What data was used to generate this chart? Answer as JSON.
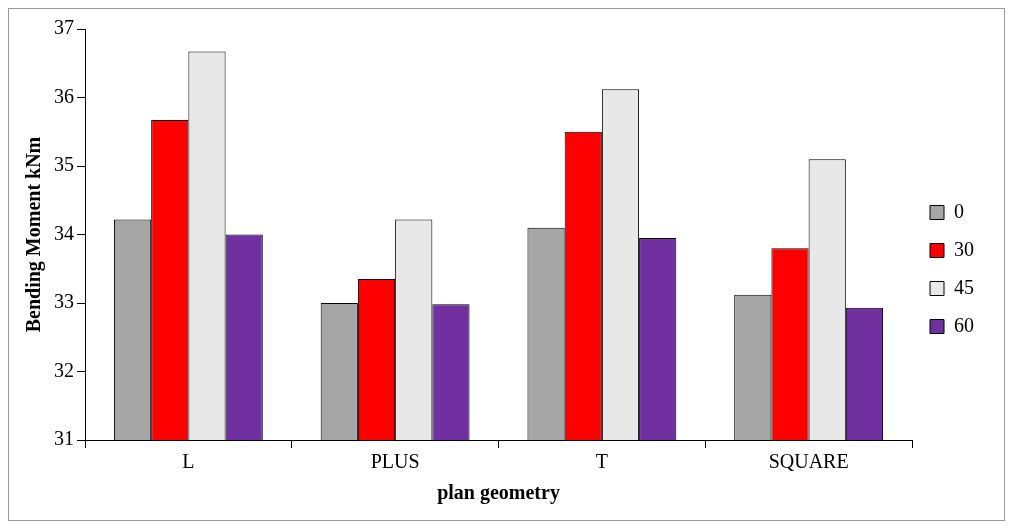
{
  "chart_data": {
    "type": "bar",
    "xlabel": "plan geometry",
    "ylabel": "Bending Moment kNm",
    "categories": [
      "L",
      "PLUS",
      "T",
      "SQUARE"
    ],
    "series": [
      {
        "name": "0",
        "color": "#a6a6a6",
        "values": [
          34.22,
          33.0,
          34.1,
          33.12
        ]
      },
      {
        "name": "30",
        "color": "#ff0000",
        "values": [
          35.67,
          33.35,
          35.5,
          33.8
        ]
      },
      {
        "name": "45",
        "color": "#e8e8e8",
        "values": [
          36.67,
          34.22,
          36.12,
          35.1
        ]
      },
      {
        "name": "60",
        "color": "#7030a0",
        "values": [
          34.0,
          32.98,
          33.95,
          32.93
        ]
      }
    ],
    "ylim": [
      31,
      37
    ],
    "yticks": [
      31,
      32,
      33,
      34,
      35,
      36,
      37
    ],
    "grid": false,
    "legend": "right"
  }
}
